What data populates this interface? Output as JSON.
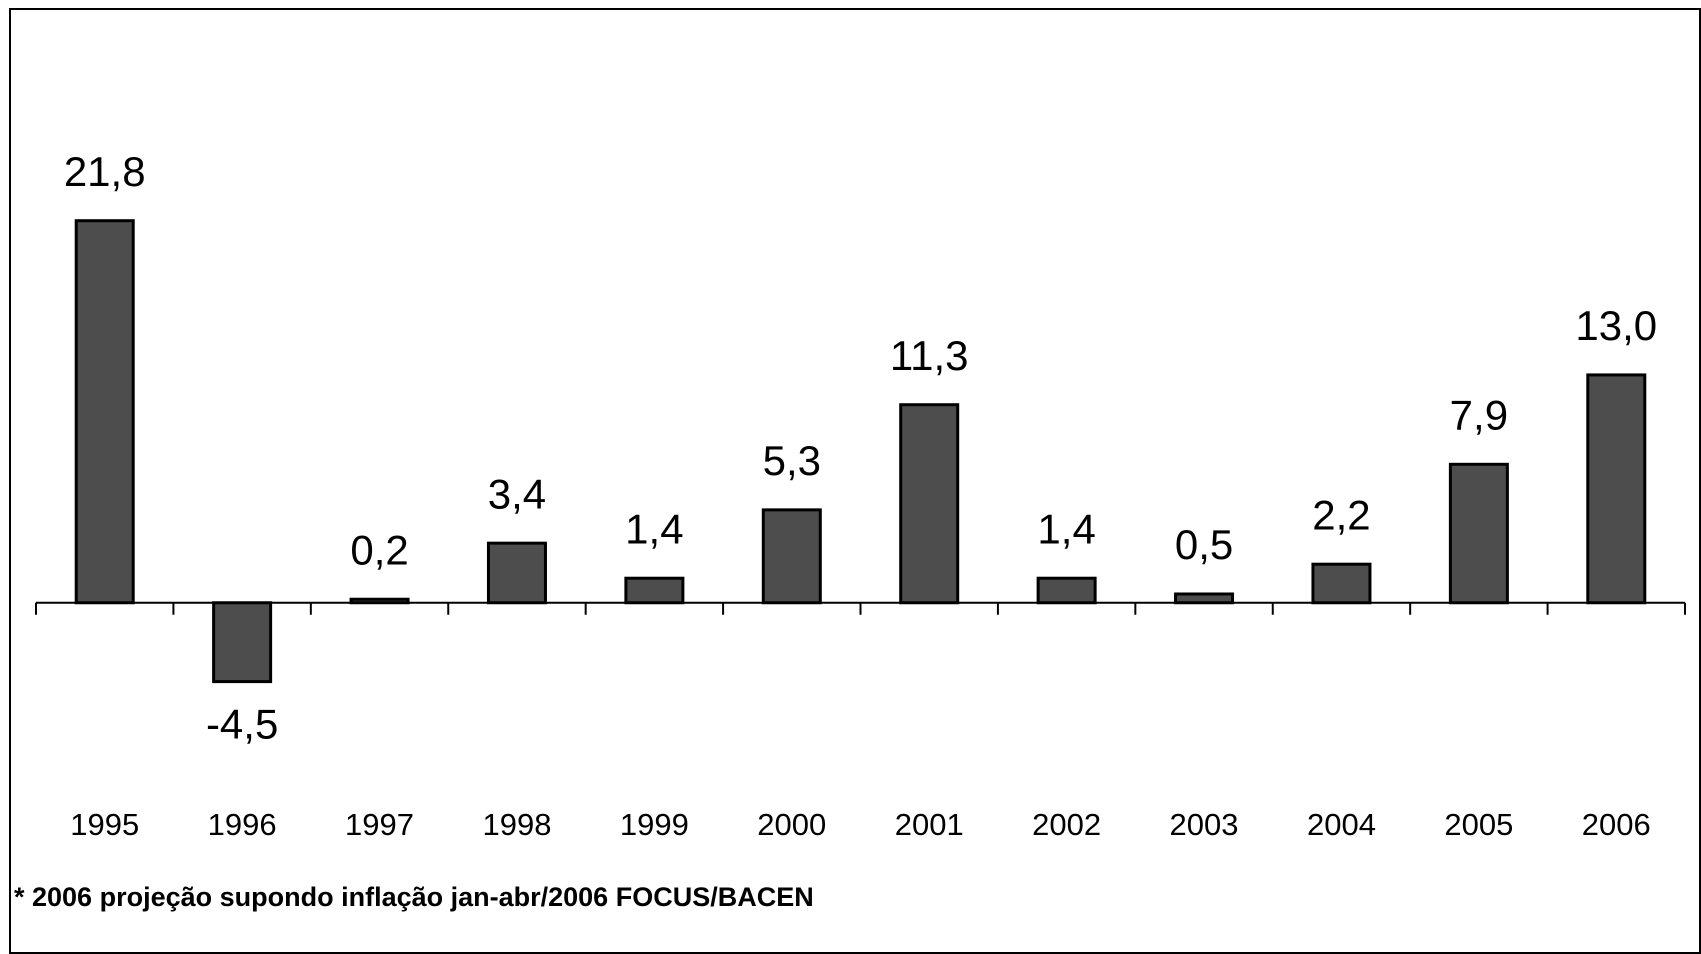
{
  "chart_data": {
    "type": "bar",
    "categories": [
      "1995",
      "1996",
      "1997",
      "1998",
      "1999",
      "2000",
      "2001",
      "2002",
      "2003",
      "2004",
      "2005",
      "2006"
    ],
    "values": [
      21.8,
      -4.5,
      0.2,
      3.4,
      1.4,
      5.3,
      11.3,
      1.4,
      0.5,
      2.2,
      7.9,
      13.0
    ],
    "value_labels": [
      "21,8",
      "-4,5",
      "0,2",
      "3,4",
      "1,4",
      "5,3",
      "11,3",
      "1,4",
      "0,5",
      "2,2",
      "7,9",
      "13,0"
    ],
    "color": "#4d4d4d",
    "ylim": [
      -10,
      30
    ],
    "footnote": "* 2006 projeção supondo inflação jan-abr/2006 FOCUS/BACEN"
  }
}
